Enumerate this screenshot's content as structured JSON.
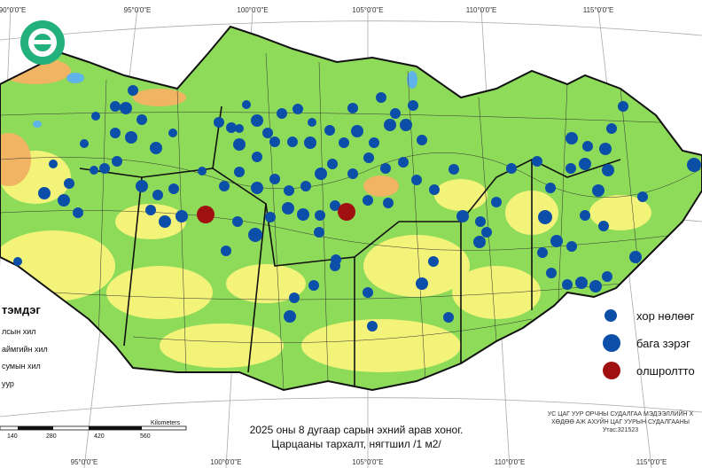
{
  "top_labels": [
    "90°0'0\"E",
    "95°0'0\"E",
    "100°0'0\"E",
    "105°0'0\"E",
    "110°0'0\"E",
    "115°0'0\"E"
  ],
  "bottom_labels": [
    "95°0'0\"E",
    "100°0'0\"E",
    "105°0'0\"E",
    "110°0'0\"E",
    "115°0'0\"E"
  ],
  "left_legend": {
    "title": "тэмдэг",
    "items": [
      "лсын хил",
      "аймгийн хил",
      "сумын хил",
      "уур"
    ]
  },
  "right_legend": [
    "хор нөлөөг",
    "бага зэрэг",
    "олшролтто"
  ],
  "title": [
    "2025 оны 8 дугаар сарын эхний арав хоног.",
    "Царцааны тархалт, нягтшил /1 м2/"
  ],
  "credit": [
    "УС ЦАГ УУР ОРЧНЫ СУДАЛГАА МЭДЭЭЛЛИЙН Х",
    "ХӨДӨӨ АЖ АХУЙН ЦАГ УУРЫН СУДАЛГААНЫ",
    "Утас:321523"
  ],
  "scale": {
    "ticks": [
      "140",
      "280",
      "420",
      "560"
    ],
    "unit": "Kilometers"
  }
}
